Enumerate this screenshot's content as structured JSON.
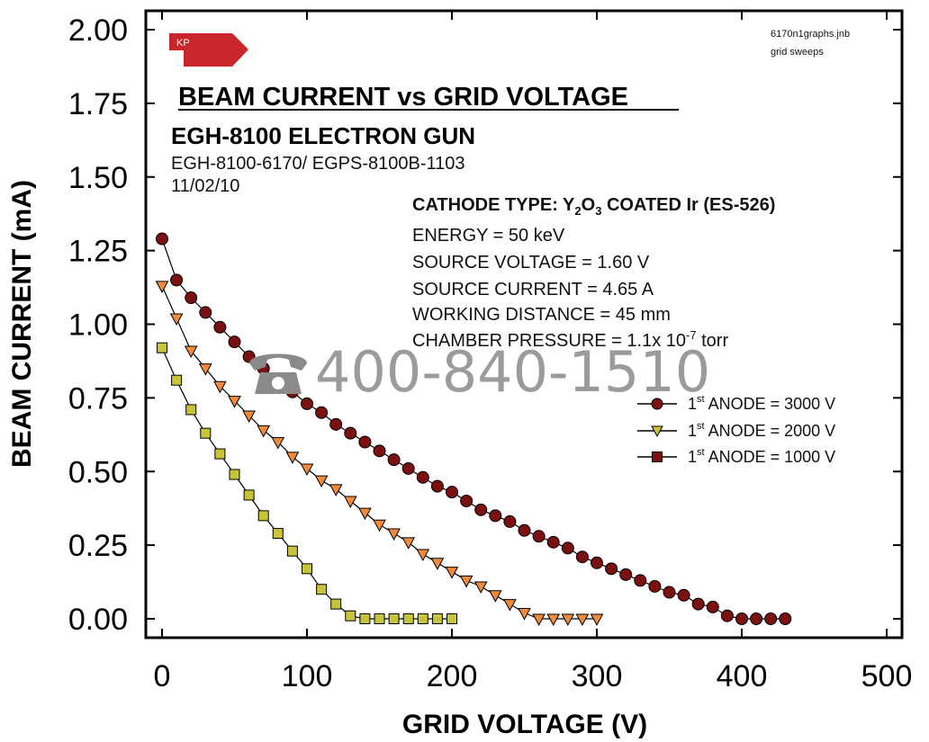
{
  "chart_data": {
    "type": "scatter",
    "title": "BEAM CURRENT vs GRID VOLTAGE",
    "xlabel": "GRID VOLTAGE (V)",
    "ylabel": "BEAM CURRENT (mA)",
    "xlim": [
      0,
      500
    ],
    "ylim": [
      0,
      2.0
    ],
    "xticks": [
      "0",
      "100",
      "200",
      "300",
      "400",
      "500"
    ],
    "yticks": [
      "0.00",
      "0.25",
      "0.50",
      "0.75",
      "1.00",
      "1.25",
      "1.50",
      "1.75",
      "2.00"
    ],
    "legend_position": "right",
    "series": [
      {
        "name": "1st ANODE = 3000 V",
        "marker": "circle",
        "color": "#7a1010",
        "x": [
          0,
          10,
          20,
          30,
          40,
          50,
          60,
          70,
          80,
          90,
          100,
          110,
          120,
          130,
          140,
          150,
          160,
          170,
          180,
          190,
          200,
          210,
          220,
          230,
          240,
          250,
          260,
          270,
          280,
          290,
          300,
          310,
          320,
          330,
          340,
          350,
          360,
          370,
          380,
          390,
          400,
          410,
          420,
          430
        ],
        "y": [
          1.29,
          1.15,
          1.09,
          1.04,
          0.99,
          0.94,
          0.89,
          0.85,
          0.81,
          0.77,
          0.73,
          0.7,
          0.66,
          0.63,
          0.6,
          0.57,
          0.54,
          0.51,
          0.48,
          0.45,
          0.43,
          0.4,
          0.37,
          0.35,
          0.33,
          0.3,
          0.28,
          0.26,
          0.24,
          0.21,
          0.19,
          0.17,
          0.15,
          0.13,
          0.11,
          0.09,
          0.08,
          0.05,
          0.04,
          0.01,
          0.0,
          0.0,
          0.0,
          0.0
        ]
      },
      {
        "name": "1st ANODE = 2000 V",
        "marker": "triangle-down",
        "color": "#f08a3c",
        "x": [
          0,
          10,
          20,
          30,
          40,
          50,
          60,
          70,
          80,
          90,
          100,
          110,
          120,
          130,
          140,
          150,
          160,
          170,
          180,
          190,
          200,
          210,
          220,
          230,
          240,
          250,
          260,
          270,
          280,
          290,
          300
        ],
        "y": [
          1.13,
          1.02,
          0.91,
          0.85,
          0.79,
          0.74,
          0.69,
          0.64,
          0.6,
          0.55,
          0.51,
          0.47,
          0.44,
          0.4,
          0.36,
          0.32,
          0.29,
          0.26,
          0.22,
          0.19,
          0.16,
          0.13,
          0.11,
          0.08,
          0.05,
          0.02,
          0.0,
          0.0,
          0.0,
          0.0,
          0.0
        ]
      },
      {
        "name": "1st ANODE = 1000 V",
        "marker": "square",
        "color": "#c8c43a",
        "x": [
          0,
          10,
          20,
          30,
          40,
          50,
          60,
          70,
          80,
          90,
          100,
          110,
          120,
          130,
          140,
          150,
          160,
          170,
          180,
          190,
          200
        ],
        "y": [
          0.92,
          0.81,
          0.71,
          0.63,
          0.56,
          0.49,
          0.42,
          0.35,
          0.29,
          0.23,
          0.17,
          0.1,
          0.05,
          0.01,
          0.0,
          0.0,
          0.0,
          0.0,
          0.0,
          0.0,
          0.0
        ]
      }
    ]
  },
  "header": {
    "logo_text": "KP",
    "file_name": "6170n1graphs.jnb",
    "file_note": "grid sweeps",
    "subtitle": "EGH-8100 ELECTRON GUN",
    "model_line": "EGH-8100-6170/ EGPS-8100B-1103",
    "date": "11/02/10"
  },
  "info": {
    "cathode_prefix": "CATHODE TYPE:  Y",
    "cathode_sub1": "2",
    "cathode_o": "O",
    "cathode_sub2": "3",
    "cathode_suffix": " COATED Ir (ES-526)",
    "energy": "ENERGY = 50 keV",
    "source_voltage": "SOURCE VOLTAGE = 1.60 V",
    "source_current": "SOURCE CURRENT = 4.65 A",
    "working_distance": "WORKING DISTANCE = 45 mm",
    "pressure_prefix": "CHAMBER PRESSURE = 1.1x 10",
    "pressure_exp": "-7",
    "pressure_suffix": " torr"
  },
  "legend_labels": [
    {
      "pre": "1",
      "sup": "st",
      "post": " ANODE = 3000 V"
    },
    {
      "pre": "1",
      "sup": "st",
      "post": " ANODE = 2000 V"
    },
    {
      "pre": "1",
      "sup": "st",
      "post": " ANODE = 1000 V"
    }
  ],
  "watermark": {
    "icon": "phone-icon",
    "text": "400-840-1510"
  },
  "colors": {
    "logo": "#c8262a",
    "circle_fill": "#7a1010",
    "triangle_fill": "#f08a3c",
    "square_fill": "#c8c43a"
  }
}
